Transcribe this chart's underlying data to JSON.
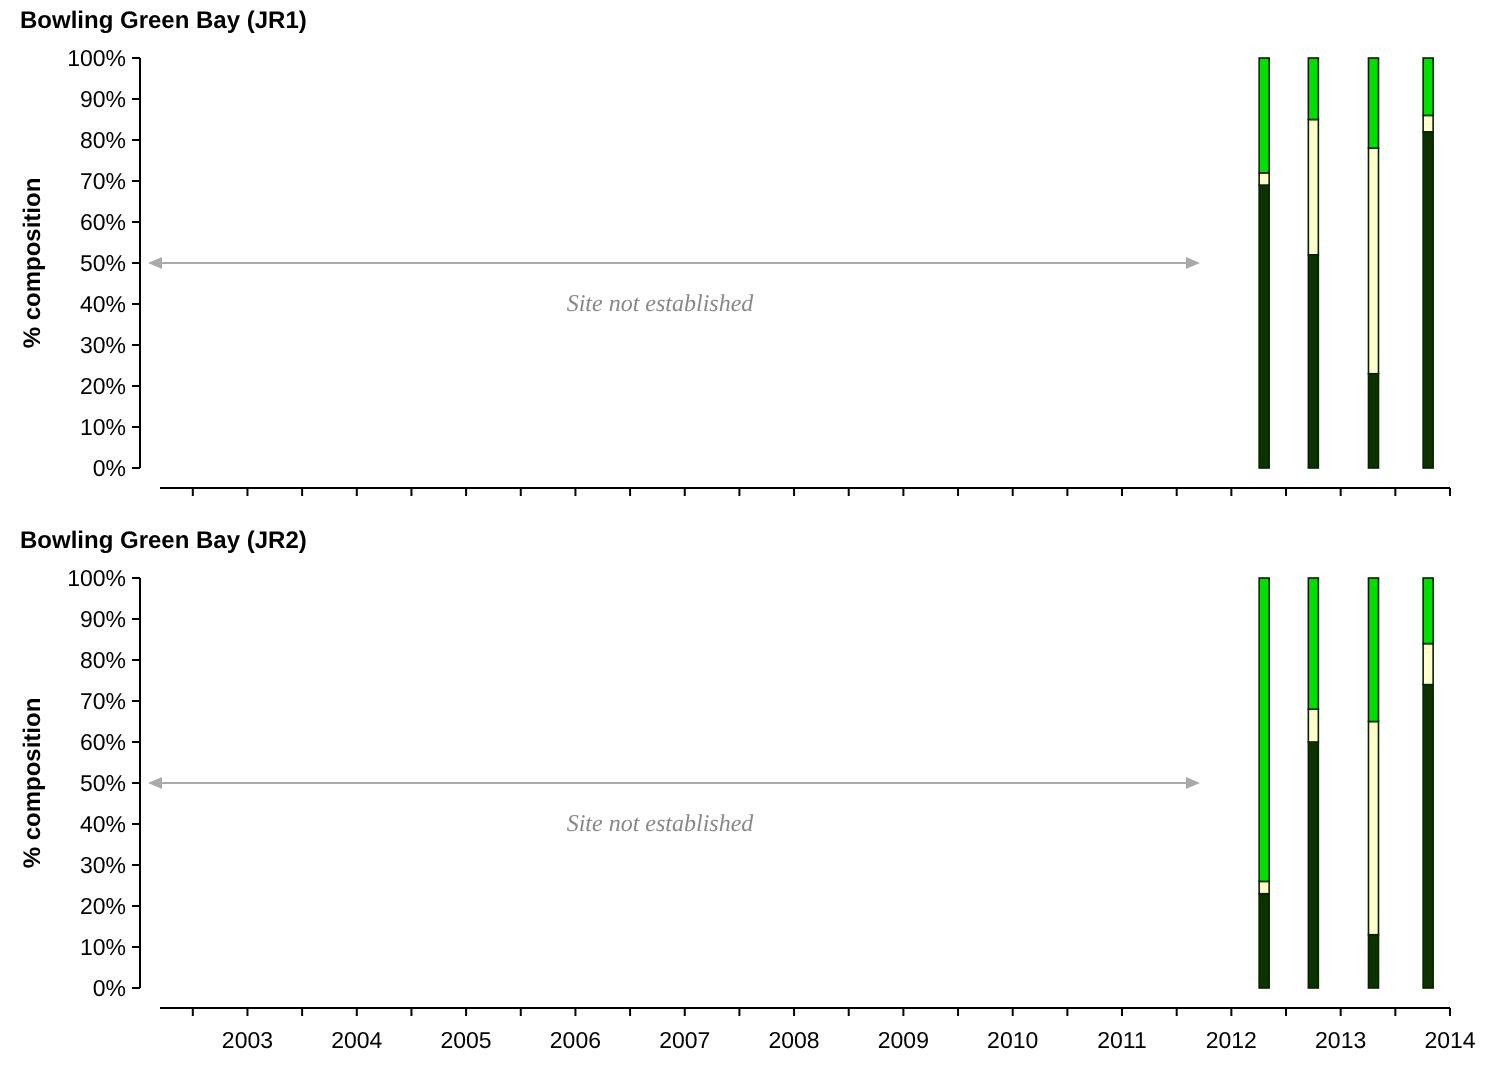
{
  "chart_data": [
    {
      "type": "bar",
      "stacked": true,
      "title": "Bowling Green Bay (JR1)",
      "ylabel": "% composition",
      "x": [
        2012.3,
        2012.75,
        2013.3,
        2013.8
      ],
      "series": [
        {
          "color": "#0a3300",
          "values": [
            69,
            52,
            23,
            82
          ]
        },
        {
          "color": "#ffffcc",
          "values": [
            3,
            33,
            55,
            4
          ]
        },
        {
          "color": "#00e000",
          "values": [
            28,
            15,
            22,
            14
          ]
        }
      ],
      "ylim": [
        0,
        100
      ],
      "yticks": [
        {
          "value": 0,
          "label": "0%"
        },
        {
          "value": 10,
          "label": "10%"
        },
        {
          "value": 20,
          "label": "20%"
        },
        {
          "value": 30,
          "label": "30%"
        },
        {
          "value": 40,
          "label": "40%"
        },
        {
          "value": 50,
          "label": "50%"
        },
        {
          "value": 60,
          "label": "60%"
        },
        {
          "value": 70,
          "label": "70%"
        },
        {
          "value": 80,
          "label": "80%"
        },
        {
          "value": 90,
          "label": "90%"
        },
        {
          "value": 100,
          "label": "100%"
        }
      ],
      "xlim": [
        2002.2,
        2014
      ],
      "xticks": [
        {
          "value": 2002.5,
          "label": null
        },
        2003,
        {
          "value": 2003.5,
          "label": null
        },
        2004,
        {
          "value": 2004.5,
          "label": null
        },
        2005,
        {
          "value": 2005.5,
          "label": null
        },
        2006,
        {
          "value": 2006.5,
          "label": null
        },
        2007,
        {
          "value": 2007.5,
          "label": null
        },
        2008,
        {
          "value": 2008.5,
          "label": null
        },
        2009,
        {
          "value": 2009.5,
          "label": null
        },
        2010,
        {
          "value": 2010.5,
          "label": null
        },
        2011,
        {
          "value": 2011.5,
          "label": null
        },
        2012,
        {
          "value": 2012.5,
          "label": null
        },
        2013,
        {
          "value": 2013.5,
          "label": null
        },
        2014
      ],
      "tick_labels": "y",
      "annotations": [
        "Site not established"
      ]
    },
    {
      "type": "bar",
      "stacked": true,
      "title": "Bowling Green Bay (JR2)",
      "ylabel": "% composition",
      "x": [
        2012.3,
        2012.75,
        2013.3,
        2013.8
      ],
      "series": [
        {
          "color": "#0a3300",
          "values": [
            23,
            60,
            13,
            74
          ]
        },
        {
          "color": "#ffffcc",
          "values": [
            3,
            8,
            52,
            10
          ]
        },
        {
          "color": "#00e000",
          "values": [
            74,
            32,
            35,
            16
          ]
        }
      ],
      "ylim": [
        0,
        100
      ],
      "yticks": [
        {
          "value": 0,
          "label": "0%"
        },
        {
          "value": 10,
          "label": "10%"
        },
        {
          "value": 20,
          "label": "20%"
        },
        {
          "value": 30,
          "label": "30%"
        },
        {
          "value": 40,
          "label": "40%"
        },
        {
          "value": 50,
          "label": "50%"
        },
        {
          "value": 60,
          "label": "60%"
        },
        {
          "value": 70,
          "label": "70%"
        },
        {
          "value": 80,
          "label": "80%"
        },
        {
          "value": 90,
          "label": "90%"
        },
        {
          "value": 100,
          "label": "100%"
        }
      ],
      "xlim": [
        2002.2,
        2014
      ],
      "xticks": [
        {
          "value": 2002.5,
          "label": null
        },
        2003,
        {
          "value": 2003.5,
          "label": null
        },
        2004,
        {
          "value": 2004.5,
          "label": null
        },
        2005,
        {
          "value": 2005.5,
          "label": null
        },
        2006,
        {
          "value": 2006.5,
          "label": null
        },
        2007,
        {
          "value": 2007.5,
          "label": null
        },
        2008,
        {
          "value": 2008.5,
          "label": null
        },
        2009,
        {
          "value": 2009.5,
          "label": null
        },
        2010,
        {
          "value": 2010.5,
          "label": null
        },
        2011,
        {
          "value": 2011.5,
          "label": null
        },
        2012,
        {
          "value": 2012.5,
          "label": null
        },
        2013,
        {
          "value": 2013.5,
          "label": null
        },
        2014
      ],
      "annotations": [
        "Site not established"
      ]
    }
  ]
}
